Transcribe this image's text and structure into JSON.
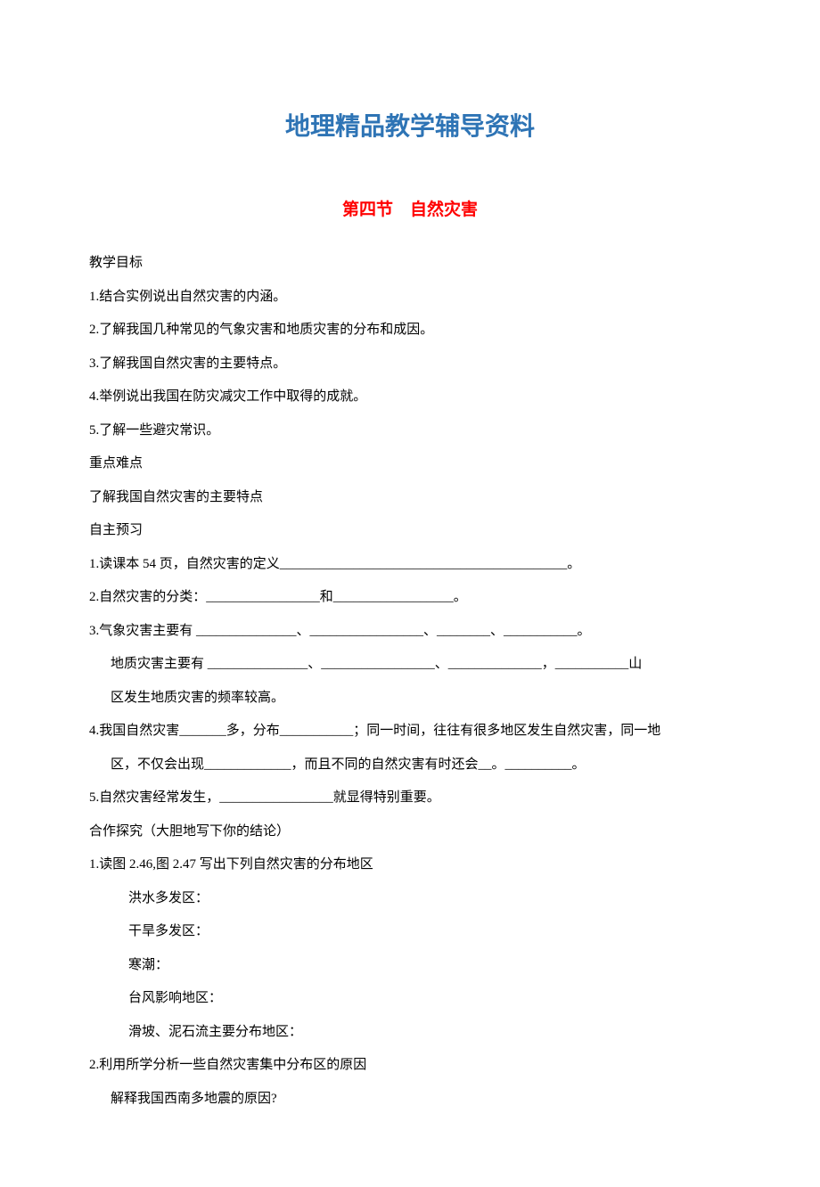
{
  "colors": {
    "main_title": "#2e74b5",
    "section_title": "#ff0000",
    "body_text": "#000000",
    "background": "#ffffff"
  },
  "typography": {
    "main_title_fontsize": 28,
    "section_title_fontsize": 19,
    "body_fontsize": 15,
    "line_height": 2.5
  },
  "main_title": "地理精品教学辅导资料",
  "section_title": "第四节　自然灾害",
  "headings": {
    "objectives": "教学目标",
    "key_points": "重点难点",
    "preview": "自主预习",
    "exploration": "合作探究（大胆地写下你的结论）"
  },
  "objectives": [
    "1.结合实例说出自然灾害的内涵。",
    "2.了解我国几种常见的气象灾害和地质灾害的分布和成因。",
    "3.了解我国自然灾害的主要特点。",
    "4.举例说出我国在防灾减灾工作中取得的成就。",
    "5.了解一些避灾常识。"
  ],
  "key_point": "了解我国自然灾害的主要特点",
  "preview": {
    "item1": "1.读课本 54 页，自然灾害的定义___________________________________________。",
    "item2": "2.自然灾害的分类：_________________和__________________。",
    "item3a": "3.气象灾害主要有 _______________、_________________、________、___________。",
    "item3b": "地质灾害主要有 _______________、_________________、______________，___________山",
    "item3c": "区发生地质灾害的频率较高。",
    "item4a": "4.我国自然灾害_______多，分布___________；同一时间，往往有很多地区发生自然灾害，同一地",
    "item4b_prefix": "区，不仅会出现_____________，而且不同的自然灾害有时还会__",
    "item4b_dot": "。",
    "item4b_suffix": "__________。",
    "item5": "5.自然灾害经常发生，_________________就显得特别重要。"
  },
  "exploration": {
    "q1": "1.读图 2.46,图 2.47 写出下列自然灾害的分布地区",
    "q1_items": [
      "洪水多发区：",
      "干旱多发区：",
      "寒潮：",
      "台风影响地区：",
      "滑坡、泥石流主要分布地区："
    ],
    "q2": "2.利用所学分析一些自然灾害集中分布区的原因",
    "q2_item": "解释我国西南多地震的原因?"
  }
}
